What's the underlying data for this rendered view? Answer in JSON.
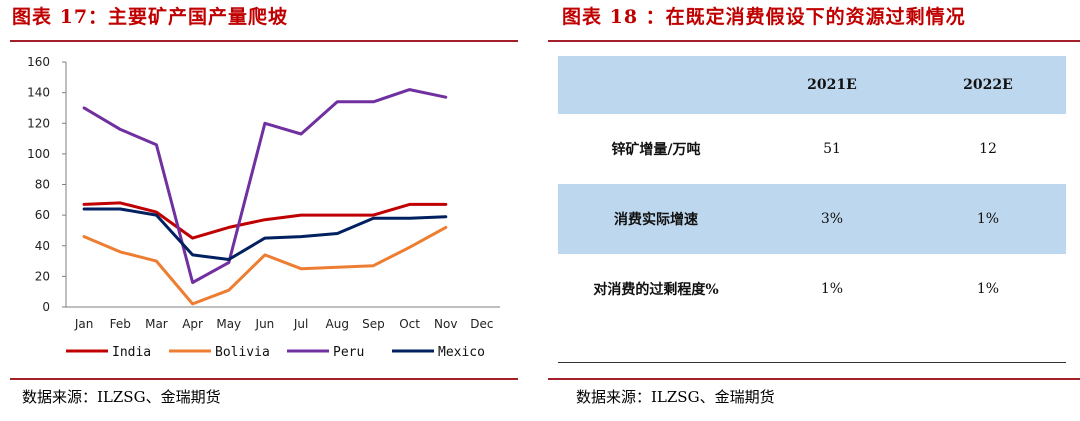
{
  "left": {
    "title": "图表 17：主要矿产国产量爬坡",
    "source": "数据来源：ILZSG、金瑞期货"
  },
  "right": {
    "title": "图表 18 ：在既定消费假设下的资源过剩情况",
    "source": "数据来源：ILZSG、金瑞期货",
    "table": {
      "headers": [
        "",
        "2021E",
        "2022E"
      ],
      "rows": [
        {
          "label": "锌矿增量/万吨",
          "values": [
            "51",
            "12"
          ]
        },
        {
          "label": "消费实际增速",
          "values": [
            "3%",
            "1%"
          ]
        },
        {
          "label": "对消费的过剩程度%",
          "values": [
            "1%",
            "1%"
          ]
        }
      ]
    }
  },
  "chart_data": {
    "type": "line",
    "x": [
      "Jan",
      "Feb",
      "Mar",
      "Apr",
      "May",
      "Jun",
      "Jul",
      "Aug",
      "Sep",
      "Oct",
      "Nov",
      "Dec"
    ],
    "ylim": [
      0,
      160
    ],
    "yticks": [
      0,
      20,
      40,
      60,
      80,
      100,
      120,
      140,
      160
    ],
    "grid": false,
    "legend_position": "bottom",
    "series": [
      {
        "name": "India",
        "color": "#c00000",
        "values": [
          67,
          68,
          62,
          45,
          52,
          57,
          60,
          60,
          60,
          67,
          67,
          null
        ]
      },
      {
        "name": "Bolivia",
        "color": "#ed7d31",
        "values": [
          46,
          36,
          30,
          2,
          11,
          34,
          25,
          26,
          27,
          39,
          52,
          null
        ]
      },
      {
        "name": "Peru",
        "color": "#7030a0",
        "values": [
          130,
          116,
          106,
          16,
          29,
          120,
          113,
          134,
          134,
          142,
          137,
          null
        ]
      },
      {
        "name": "Mexico",
        "color": "#002060",
        "values": [
          64,
          64,
          60,
          34,
          31,
          45,
          46,
          48,
          58,
          58,
          59,
          null
        ]
      }
    ]
  }
}
